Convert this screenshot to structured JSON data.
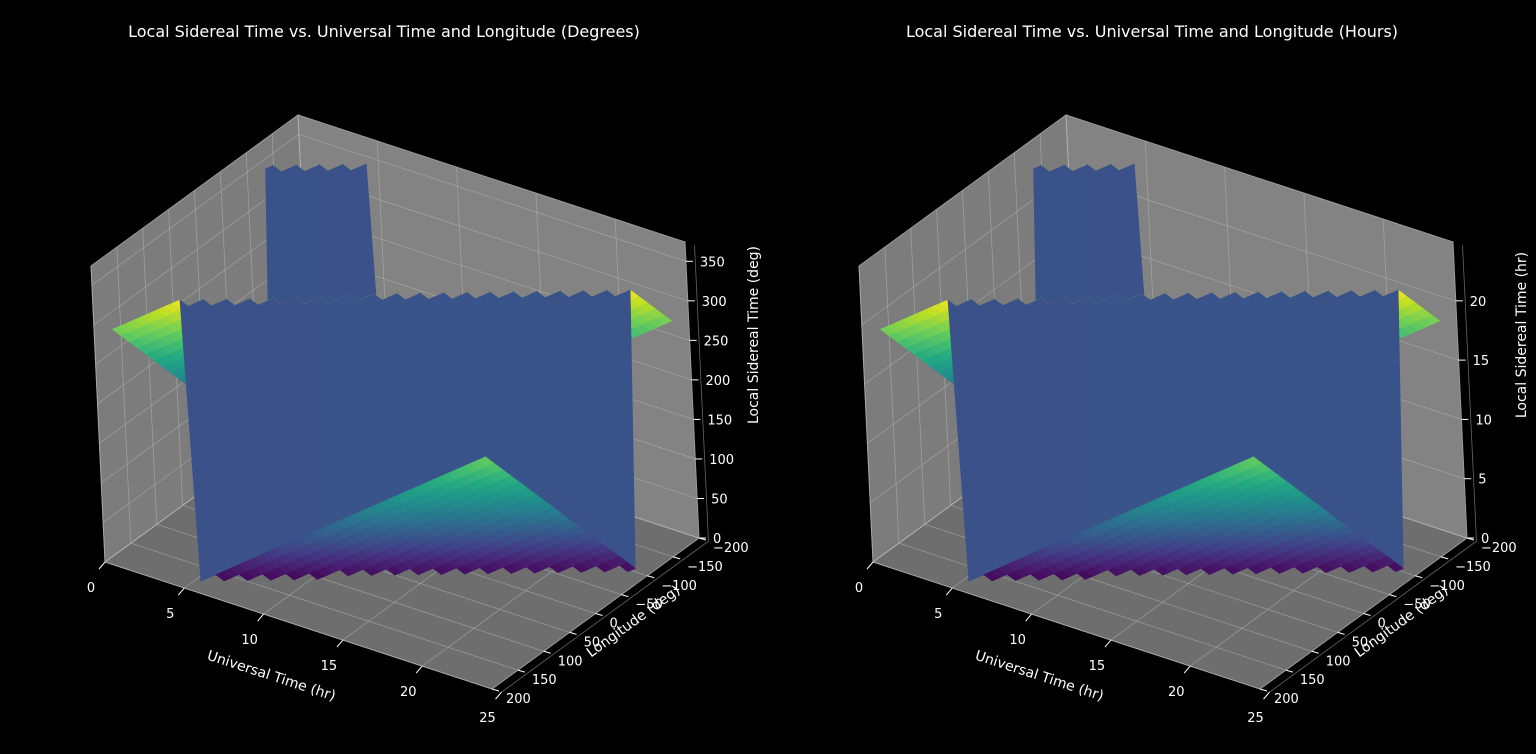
{
  "chart_data": [
    {
      "type": "surface",
      "title": "Local Sidereal Time vs. Universal Time and Longitude (Degrees)",
      "xlabel": "Universal Time (hr)",
      "ylabel": "Longitude (deg)",
      "zlabel": "Local Sidereal Time (deg)",
      "xlim": [
        0,
        24
      ],
      "ylim": [
        -180,
        180
      ],
      "zlim": [
        0,
        360
      ],
      "xticks": [
        "0",
        "5",
        "10",
        "15",
        "20",
        "25"
      ],
      "yticks": [
        "−200",
        "−150",
        "−100",
        "−50",
        "0",
        "50",
        "100",
        "150",
        "200"
      ],
      "zticks": [
        "0",
        "50",
        "100",
        "150",
        "200",
        "250",
        "300",
        "350"
      ],
      "colormap": "viridis",
      "background": "#000000",
      "pane_color": "#808080"
    },
    {
      "type": "surface",
      "title": "Local Sidereal Time vs. Universal Time and Longitude (Hours)",
      "xlabel": "Universal Time (hr)",
      "ylabel": "Longitude (deg)",
      "zlabel": "Local Sidereal Time (hr)",
      "xlim": [
        0,
        24
      ],
      "ylim": [
        -180,
        180
      ],
      "zlim": [
        0,
        24
      ],
      "xticks": [
        "0",
        "5",
        "10",
        "15",
        "20",
        "25"
      ],
      "yticks": [
        "−200",
        "−150",
        "−100",
        "−50",
        "0",
        "50",
        "100",
        "150",
        "200"
      ],
      "zticks": [
        "0",
        "5",
        "10",
        "15",
        "20"
      ],
      "colormap": "viridis",
      "background": "#000000",
      "pane_color": "#808080"
    }
  ]
}
